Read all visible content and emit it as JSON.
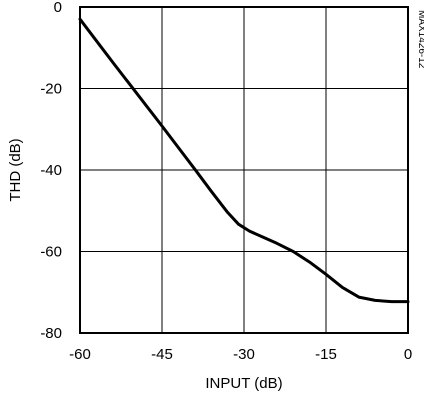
{
  "chart_data": {
    "type": "line",
    "title": "",
    "xlabel": "INPUT (dB)",
    "ylabel": "THD (dB)",
    "xlim": [
      -60,
      0
    ],
    "ylim": [
      -80,
      0
    ],
    "xticks": [
      -60,
      -45,
      -30,
      -15,
      0
    ],
    "yticks": [
      0,
      -20,
      -40,
      -60,
      -80
    ],
    "xtick_labels": [
      "-60",
      "-45",
      "-30",
      "-15",
      "0"
    ],
    "ytick_labels": [
      "0",
      "-20",
      "-40",
      "-60",
      "-80"
    ],
    "grid": true,
    "line_color": "#000000",
    "series": [
      {
        "x": [
          -60,
          -57,
          -54,
          -51,
          -48,
          -45,
          -42,
          -39,
          -36,
          -33,
          -31,
          -29,
          -27,
          -24,
          -21,
          -18,
          -15,
          -12,
          -9,
          -6,
          -3,
          0
        ],
        "y": [
          -3,
          -8.3,
          -13.6,
          -18.8,
          -24,
          -29.2,
          -34.5,
          -39.8,
          -45.2,
          -50.4,
          -53.3,
          -55,
          -56.2,
          -58,
          -60,
          -62.6,
          -65.6,
          -68.8,
          -71.2,
          -72,
          -72.3,
          -72.3
        ]
      }
    ],
    "side_note": "MAX1426-12"
  }
}
